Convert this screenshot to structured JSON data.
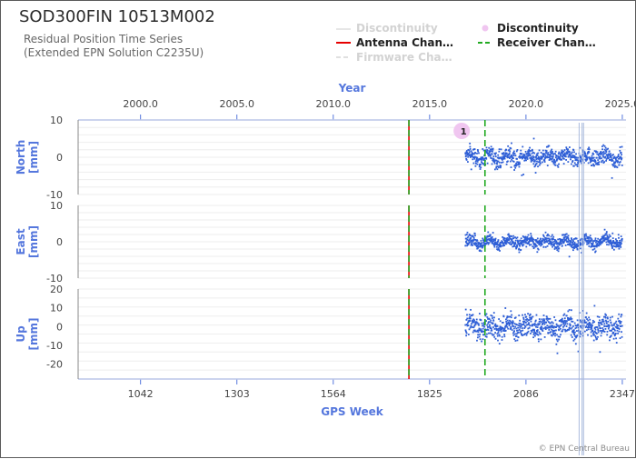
{
  "header": {
    "title": "SOD300FIN 10513M002",
    "subtitle_line1": "Residual Position Time Series",
    "subtitle_line2": "(Extended EPN Solution C2235U)"
  },
  "legend": {
    "items": [
      {
        "label": "Discontinuity",
        "style": "line",
        "color": "#e6e6e6",
        "text_color": "#d3d3d3"
      },
      {
        "label": "Antenna Chan…",
        "style": "line",
        "color": "#e60000",
        "text_color": "#222222"
      },
      {
        "label": "Firmware Cha…",
        "style": "dashed",
        "color": "#e0e0e0",
        "text_color": "#d3d3d3"
      },
      {
        "label": "Discontinuity",
        "style": "dot",
        "color": "#f0c6f0",
        "text_color": "#222222"
      },
      {
        "label": "Receiver Chan…",
        "style": "dashed",
        "color": "#22aa22",
        "text_color": "#222222"
      }
    ]
  },
  "footer": {
    "credit": "© EPN Central Bureau"
  },
  "chart_data": {
    "type": "scatter",
    "top_axis": {
      "label": "Year",
      "ticks": [
        "2000.0",
        "2005.0",
        "2010.0",
        "2015.0",
        "2020.0",
        "2025.0"
      ],
      "values": [
        2000.0,
        2005.0,
        2010.0,
        2015.0,
        2020.0,
        2025.0
      ]
    },
    "bottom_axis": {
      "label": "GPS Week",
      "ticks": [
        "1042",
        "1303",
        "1564",
        "1825",
        "2086",
        "2347"
      ],
      "values": [
        1042,
        1303,
        1564,
        1825,
        2086,
        2347
      ]
    },
    "xlim": [
      873,
      2357
    ],
    "panels": [
      {
        "name": "north",
        "ylabel": "North\n[mm]",
        "ylim": [
          -10,
          10
        ],
        "yticks": [
          10,
          0,
          -10
        ],
        "data_range": [
          1922,
          2347
        ],
        "noise_mm": 1.6
      },
      {
        "name": "east",
        "ylabel": "East\n[mm]",
        "ylim": [
          -10,
          10
        ],
        "yticks": [
          10,
          0,
          -10
        ],
        "data_range": [
          1922,
          2347
        ],
        "noise_mm": 1.2
      },
      {
        "name": "up",
        "ylabel": "Up\n[mm]",
        "ylim": [
          -28,
          20
        ],
        "yticks": [
          20,
          10,
          0,
          -10,
          -20
        ],
        "data_range": [
          1922,
          2347
        ],
        "noise_mm": 4.5
      }
    ],
    "events": [
      {
        "type": "antenna_change",
        "gps_week": 1769,
        "color": "#e60000"
      },
      {
        "type": "receiver_change",
        "gps_week": 1769,
        "color": "#22aa22"
      },
      {
        "type": "receiver_change",
        "gps_week": 1975,
        "color": "#22aa22"
      }
    ],
    "discontinuity_markers": [
      {
        "label": "1",
        "gps_week": 1912
      }
    ],
    "series_color": "#2f5fd6"
  }
}
